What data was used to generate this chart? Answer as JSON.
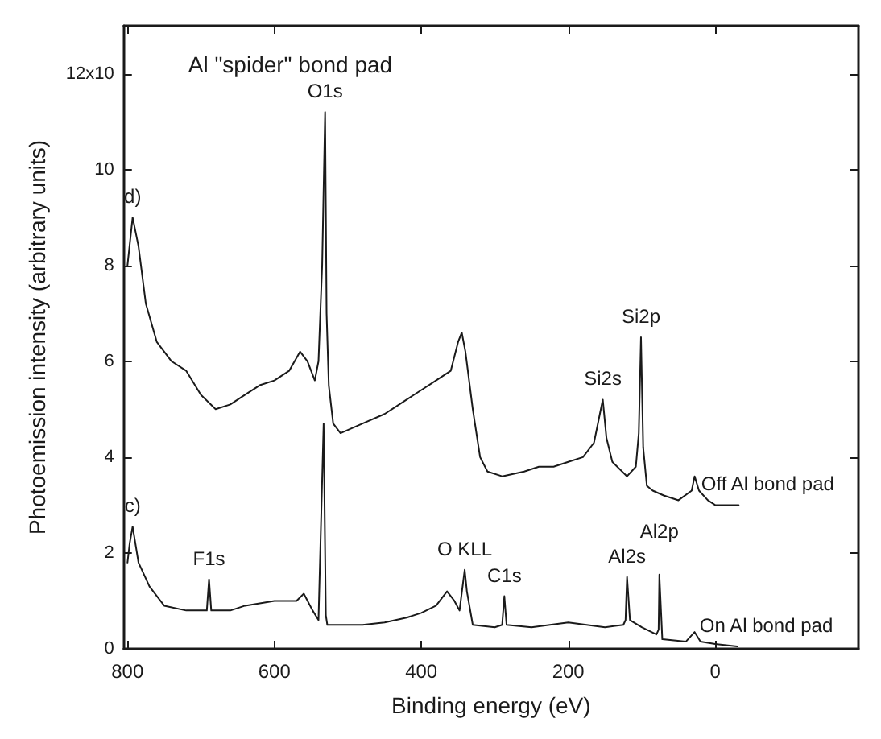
{
  "chart_data": {
    "type": "line",
    "title": "Al \"spider\" bond pad",
    "xlabel": "Binding energy (eV)",
    "ylabel": "Photoemission intensity (arbitrary units)",
    "xlim": [
      805,
      -195
    ],
    "xticks": [
      800,
      600,
      400,
      200,
      0
    ],
    "ylim": [
      0,
      13
    ],
    "yticks": [
      0,
      2,
      4,
      6,
      8,
      10,
      {
        "value": 12,
        "label": "12x10"
      }
    ],
    "marker": "none",
    "line_style": "solid",
    "series": [
      {
        "name": "Off Al bond pad",
        "color": "#1a1a1a",
        "x": [
          800,
          793,
          785,
          775,
          760,
          740,
          720,
          700,
          680,
          660,
          640,
          620,
          600,
          580,
          565,
          555,
          545,
          540,
          535,
          531,
          529,
          526,
          520,
          510,
          480,
          450,
          420,
          400,
          380,
          360,
          350,
          345,
          340,
          330,
          320,
          310,
          290,
          260,
          240,
          220,
          200,
          180,
          165,
          153,
          148,
          140,
          120,
          108,
          104,
          101,
          98,
          93,
          85,
          70,
          50,
          32,
          28,
          22,
          10,
          0,
          -20,
          -32
        ],
        "values": [
          8.0,
          9.0,
          8.4,
          7.2,
          6.4,
          6.0,
          5.8,
          5.3,
          5.0,
          5.1,
          5.3,
          5.5,
          5.6,
          5.8,
          6.2,
          6.0,
          5.6,
          6.0,
          8.0,
          11.2,
          7.0,
          5.5,
          4.7,
          4.5,
          4.7,
          4.9,
          5.2,
          5.4,
          5.6,
          5.8,
          6.4,
          6.6,
          6.2,
          5.0,
          4.0,
          3.7,
          3.6,
          3.7,
          3.8,
          3.8,
          3.9,
          4.0,
          4.3,
          5.2,
          4.4,
          3.9,
          3.6,
          3.8,
          4.5,
          6.5,
          4.2,
          3.4,
          3.3,
          3.2,
          3.1,
          3.3,
          3.6,
          3.3,
          3.1,
          3.0,
          3.0,
          3.0
        ]
      },
      {
        "name": "On Al bond pad",
        "color": "#1a1a1a",
        "x": [
          800,
          797,
          793,
          785,
          770,
          750,
          720,
          700,
          692,
          689,
          686,
          660,
          640,
          600,
          570,
          560,
          548,
          540,
          533,
          530,
          528,
          510,
          480,
          450,
          420,
          400,
          380,
          365,
          355,
          348,
          341,
          338,
          330,
          300,
          290,
          287,
          284,
          250,
          200,
          150,
          125,
          122,
          120,
          116,
          100,
          80,
          77,
          76,
          72,
          40,
          28,
          20,
          0,
          -30
        ],
        "values": [
          1.8,
          2.2,
          2.55,
          1.8,
          1.3,
          0.9,
          0.8,
          0.8,
          0.8,
          1.45,
          0.8,
          0.8,
          0.9,
          1.0,
          1.0,
          1.15,
          0.8,
          0.6,
          4.7,
          0.7,
          0.5,
          0.5,
          0.5,
          0.55,
          0.65,
          0.75,
          0.9,
          1.2,
          1.0,
          0.8,
          1.65,
          1.2,
          0.5,
          0.45,
          0.5,
          1.1,
          0.5,
          0.45,
          0.55,
          0.45,
          0.5,
          0.6,
          1.5,
          0.6,
          0.45,
          0.3,
          0.4,
          1.55,
          0.2,
          0.15,
          0.35,
          0.15,
          0.1,
          0.05
        ]
      }
    ],
    "annotations": [
      {
        "text": "d)",
        "x": 793,
        "y": 9.0
      },
      {
        "text": "c)",
        "x": 793,
        "y": 2.55
      },
      {
        "text": "O1s",
        "x": 531,
        "y": 11.2
      },
      {
        "text": "Si2s",
        "x": 153,
        "y": 5.2
      },
      {
        "text": "Si2p",
        "x": 101,
        "y": 6.5
      },
      {
        "text": "F1s",
        "x": 689,
        "y": 1.45
      },
      {
        "text": "O KLL",
        "x": 341,
        "y": 1.65
      },
      {
        "text": "C1s",
        "x": 287,
        "y": 1.1
      },
      {
        "text": "Al2s",
        "x": 120,
        "y": 1.5
      },
      {
        "text": "Al2p",
        "x": 76,
        "y": 1.55
      }
    ]
  }
}
